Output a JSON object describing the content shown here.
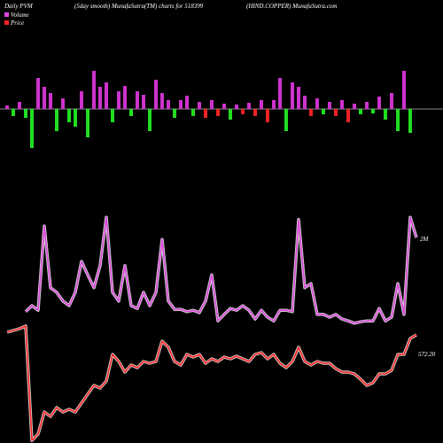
{
  "chart_data": [
    {
      "type": "bar",
      "title": "Daily PVM",
      "values": [
        4,
        -8,
        8,
        -10,
        -44,
        35,
        25,
        18,
        -25,
        12,
        -15,
        -20,
        20,
        -32,
        43,
        25,
        30,
        -15,
        20,
        26,
        -8,
        20,
        16,
        -25,
        33,
        18,
        10,
        -10,
        10,
        15,
        -8,
        8,
        -10,
        10,
        -8,
        6,
        -12,
        5,
        -6,
        7,
        -8,
        10,
        -15,
        10,
        35,
        -25,
        30,
        25,
        15,
        -8,
        12,
        -6,
        8,
        -8,
        10,
        -15,
        6,
        -6,
        8,
        -5,
        14,
        -12,
        18,
        -25,
        43,
        -27
      ],
      "colors": [
        "#cc33cc",
        "#22dd22",
        "#cc33cc",
        "#22dd22",
        "#22dd22",
        "#cc33cc",
        "#cc33cc",
        "#cc33cc",
        "#22dd22",
        "#cc33cc",
        "#22dd22",
        "#22dd22",
        "#cc33cc",
        "#22dd22",
        "#cc33cc",
        "#cc33cc",
        "#cc33cc",
        "#22dd22",
        "#cc33cc",
        "#cc33cc",
        "#22dd22",
        "#cc33cc",
        "#cc33cc",
        "#22dd22",
        "#cc33cc",
        "#cc33cc",
        "#cc33cc",
        "#22dd22",
        "#cc33cc",
        "#cc33cc",
        "#22dd22",
        "#cc33cc",
        "#ee2222",
        "#cc33cc",
        "#ee2222",
        "#cc33cc",
        "#22dd22",
        "#cc33cc",
        "#ee2222",
        "#cc33cc",
        "#ee2222",
        "#cc33cc",
        "#ee2222",
        "#cc33cc",
        "#cc33cc",
        "#22dd22",
        "#cc33cc",
        "#cc33cc",
        "#cc33cc",
        "#ee2222",
        "#cc33cc",
        "#22dd22",
        "#cc33cc",
        "#ee2222",
        "#cc33cc",
        "#ee2222",
        "#cc33cc",
        "#22dd22",
        "#cc33cc",
        "#22dd22",
        "#cc33cc",
        "#22dd22",
        "#cc33cc",
        "#22dd22",
        "#cc33cc",
        "#22dd22"
      ],
      "ylim": [
        -50,
        50
      ]
    },
    {
      "type": "line",
      "title": "(5day smooth) MunafaSutra(TM) charts for 518399",
      "subtitle": "(HIND.COPPER) MunafaSutra.com",
      "categories": [
        null,
        null,
        null,
        null,
        null,
        null,
        null,
        null,
        null,
        null,
        null,
        null,
        null,
        null,
        null,
        null,
        null,
        null,
        null,
        null,
        null,
        null,
        null,
        null,
        null,
        null,
        null,
        null,
        null,
        null,
        null,
        null,
        null,
        null,
        null,
        null,
        null,
        null,
        null,
        null,
        null,
        null,
        null,
        null,
        null,
        null,
        null,
        null,
        null,
        null,
        null,
        null,
        null,
        null,
        null,
        null,
        null,
        null,
        null,
        null,
        null,
        null,
        null,
        null,
        null,
        null,
        null
      ],
      "series": [
        {
          "name": "Volume",
          "color": "#dd44dd",
          "values": [
            null,
            null,
            null,
            0.35,
            0.48,
            0.38,
            2.21,
            0.87,
            0.77,
            0.58,
            0.48,
            0.77,
            1.44,
            1.15,
            0.87,
            1.35,
            2.4,
            0.77,
            0.58,
            1.35,
            0.48,
            0.42,
            0.77,
            0.48,
            0.77,
            1.92,
            0.58,
            0.4,
            0.4,
            0.35,
            0.38,
            0.33,
            0.58,
            1.15,
            0.15,
            0.29,
            0.42,
            0.38,
            0.48,
            0.38,
            0.19,
            0.38,
            0.23,
            0.15,
            0.38,
            0.38,
            0.35,
            2.35,
            0.87,
            0.96,
            0.29,
            0.29,
            0.23,
            0.29,
            0.19,
            0.15,
            0.1,
            0.13,
            0.15,
            0.15,
            0.42,
            0.15,
            0.23,
            0.96,
            0.29,
            2.4,
            1.96
          ]
        },
        {
          "name": "Price",
          "color": "#ff2222",
          "axis": "y2",
          "values": [
            602.2,
            605.8,
            609.4,
            614.7,
            385,
            397.8,
            442.2,
            433.3,
            451.1,
            442.2,
            447.6,
            442.2,
            460.0,
            477.8,
            495.6,
            490.2,
            504.5,
            557.8,
            543.6,
            522.2,
            536.5,
            531.1,
            543.6,
            540.0,
            543.6,
            584.5,
            572.0,
            543.6,
            536.5,
            557.8,
            552.5,
            557.8,
            540.0,
            548.9,
            543.6,
            552.5,
            548.9,
            554.2,
            548.9,
            543.6,
            557.8,
            561.4,
            548.9,
            557.8,
            540.0,
            531.1,
            543.6,
            572.0,
            543.6,
            536.5,
            543.6,
            540.0,
            540.0,
            529.4,
            522.2,
            522.2,
            518.7,
            508.0,
            495.6,
            500.9,
            518.7,
            518.7,
            525.8,
            557.8,
            557.8,
            589.8,
            596.9
          ]
        }
      ],
      "ylim": [
        0,
        2.5
      ],
      "y2lim": [
        380,
        620
      ],
      "annotations": [
        "2M",
        "572.20"
      ]
    }
  ]
}
